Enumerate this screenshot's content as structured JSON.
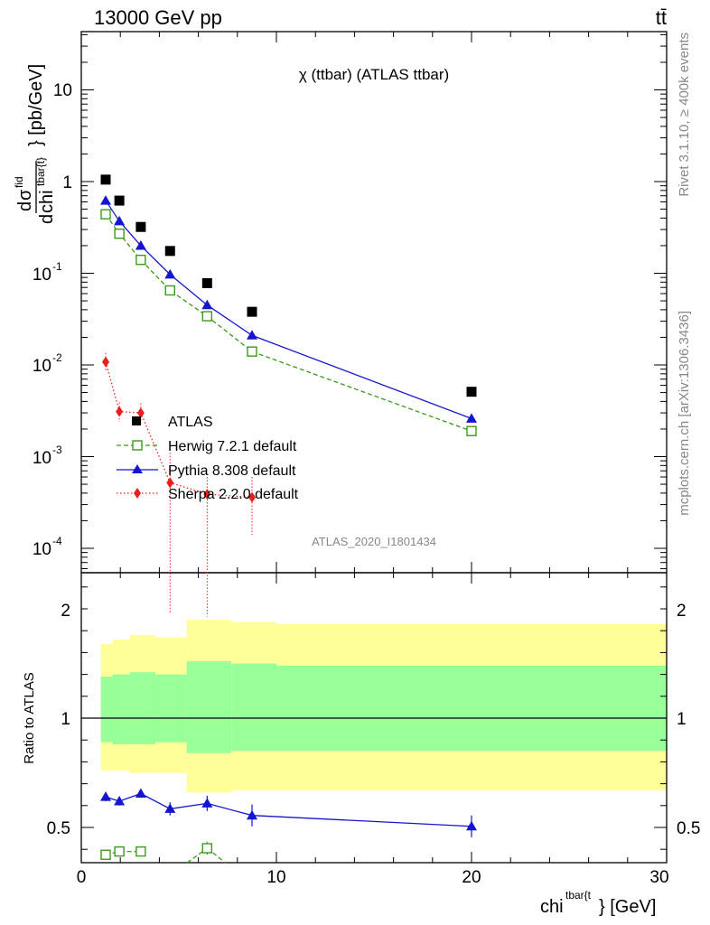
{
  "header": {
    "energy_label": "13000 GeV pp",
    "process_label": "tt̄",
    "plot_title": "χ (ttbar) (ATLAS ttbar)",
    "analysis_id": "ATLAS_2020_I1801434",
    "rivet_label": "Rivet 3.1.10, ≥ 400k events",
    "mcplots_label": "mcplots.cern.ch [arXiv:1306.3436]"
  },
  "axes": {
    "ylabel_main": "dσ^fid / dchi^tbar{t} [pb/GeV]",
    "ylabel_main_parts": {
      "num_d": "d",
      "num_sigma": "σ",
      "num_sup": "fid",
      "den_d": "d",
      "den_chi": "chi",
      "den_sup": "tbar{t}",
      "unit": "} [pb/GeV]"
    },
    "ylabel_ratio": "Ratio to ATLAS",
    "xlabel_main": "chi",
    "xlabel_sup": "tbar{t",
    "xlabel_tail": "} [GeV]",
    "xlim": [
      0,
      30
    ],
    "ylim_main": [
      3e-05,
      40
    ],
    "ylim_ratio": [
      0.35,
      2.3
    ],
    "yscale_main": "log",
    "main_tick_labels": [
      "10",
      "1",
      "10",
      "10",
      "10",
      "10"
    ],
    "main_tick_exps": [
      "",
      "",
      "-1",
      "-2",
      "-3",
      "-4"
    ],
    "ratio_tick_labels": [
      "2",
      "1",
      "0.5"
    ],
    "x_tick_labels": [
      "0",
      "10",
      "20",
      "30"
    ]
  },
  "chart_data": [
    {
      "type": "scatter",
      "panel": "main",
      "title": "χ (ttbar) (ATLAS ttbar)",
      "legend_position": "lower-left",
      "series": [
        {
          "name": "ATLAS",
          "style": "data",
          "color": "#000000",
          "marker": "square",
          "x": [
            1.25,
            1.95,
            3.05,
            4.55,
            6.45,
            8.75,
            20.0
          ],
          "y": [
            1.05,
            0.62,
            0.32,
            0.175,
            0.078,
            0.038,
            0.0051
          ]
        },
        {
          "name": "Herwig 7.2.1 default",
          "style": "dashed",
          "color": "#3b9b1a",
          "marker": "open-square",
          "x": [
            1.25,
            1.95,
            3.05,
            4.55,
            6.45,
            8.75,
            20.0
          ],
          "y": [
            0.44,
            0.27,
            0.14,
            0.065,
            0.034,
            0.014,
            0.0019
          ]
        },
        {
          "name": "Pythia 8.308 default",
          "style": "solid",
          "color": "#1515d0",
          "marker": "triangle",
          "x": [
            1.25,
            1.95,
            3.05,
            4.55,
            6.45,
            8.75,
            20.0
          ],
          "y": [
            0.62,
            0.37,
            0.2,
            0.097,
            0.045,
            0.021,
            0.0026
          ]
        },
        {
          "name": "Sherpa 2.2.0 default",
          "style": "dotted",
          "color": "#e8201e",
          "marker": "diamond",
          "x": [
            1.25,
            1.95,
            3.05,
            4.55,
            6.45,
            8.75
          ],
          "y": [
            0.0108,
            0.0031,
            0.003,
            0.00052,
            0.00039,
            0.00036
          ],
          "err_low": [
            0.0085,
            0.0024,
            0.0023,
            2e-05,
            1.8e-05,
            0.00014
          ],
          "err_high": [
            0.0135,
            0.0039,
            0.0038,
            0.0011,
            0.0006,
            0.0006
          ]
        }
      ]
    },
    {
      "type": "line",
      "panel": "ratio",
      "reference_line": 1,
      "bands": {
        "edges": [
          1.0,
          1.6,
          2.5,
          3.8,
          5.4,
          7.7,
          10.0,
          30.0
        ],
        "yellow_low": [
          0.76,
          0.76,
          0.75,
          0.75,
          0.66,
          0.67,
          0.67
        ],
        "yellow_high": [
          1.34,
          1.36,
          1.38,
          1.37,
          1.45,
          1.44,
          1.43
        ],
        "green_low": [
          0.89,
          0.88,
          0.88,
          0.89,
          0.84,
          0.85,
          0.85
        ],
        "green_high": [
          1.19,
          1.2,
          1.21,
          1.2,
          1.26,
          1.25,
          1.24
        ],
        "colors": {
          "yellow": "#ffff99",
          "green": "#99ff99"
        }
      },
      "series": [
        {
          "name": "Pythia 8.308 default",
          "color": "#1515d0",
          "x": [
            1.25,
            1.95,
            3.05,
            4.55,
            6.45,
            8.75,
            20.0
          ],
          "y": [
            0.64,
            0.62,
            0.655,
            0.585,
            0.61,
            0.555,
            0.505
          ],
          "err": [
            0.02,
            0.02,
            0.02,
            0.03,
            0.035,
            0.05,
            0.05
          ]
        },
        {
          "name": "Herwig 7.2.1 default",
          "color": "#3b9b1a",
          "x": [
            1.25,
            1.95,
            3.05,
            6.45
          ],
          "y": [
            0.375,
            0.39,
            0.39,
            0.405
          ],
          "err": [
            0.01,
            0.01,
            0.01,
            0.03
          ]
        }
      ]
    }
  ]
}
